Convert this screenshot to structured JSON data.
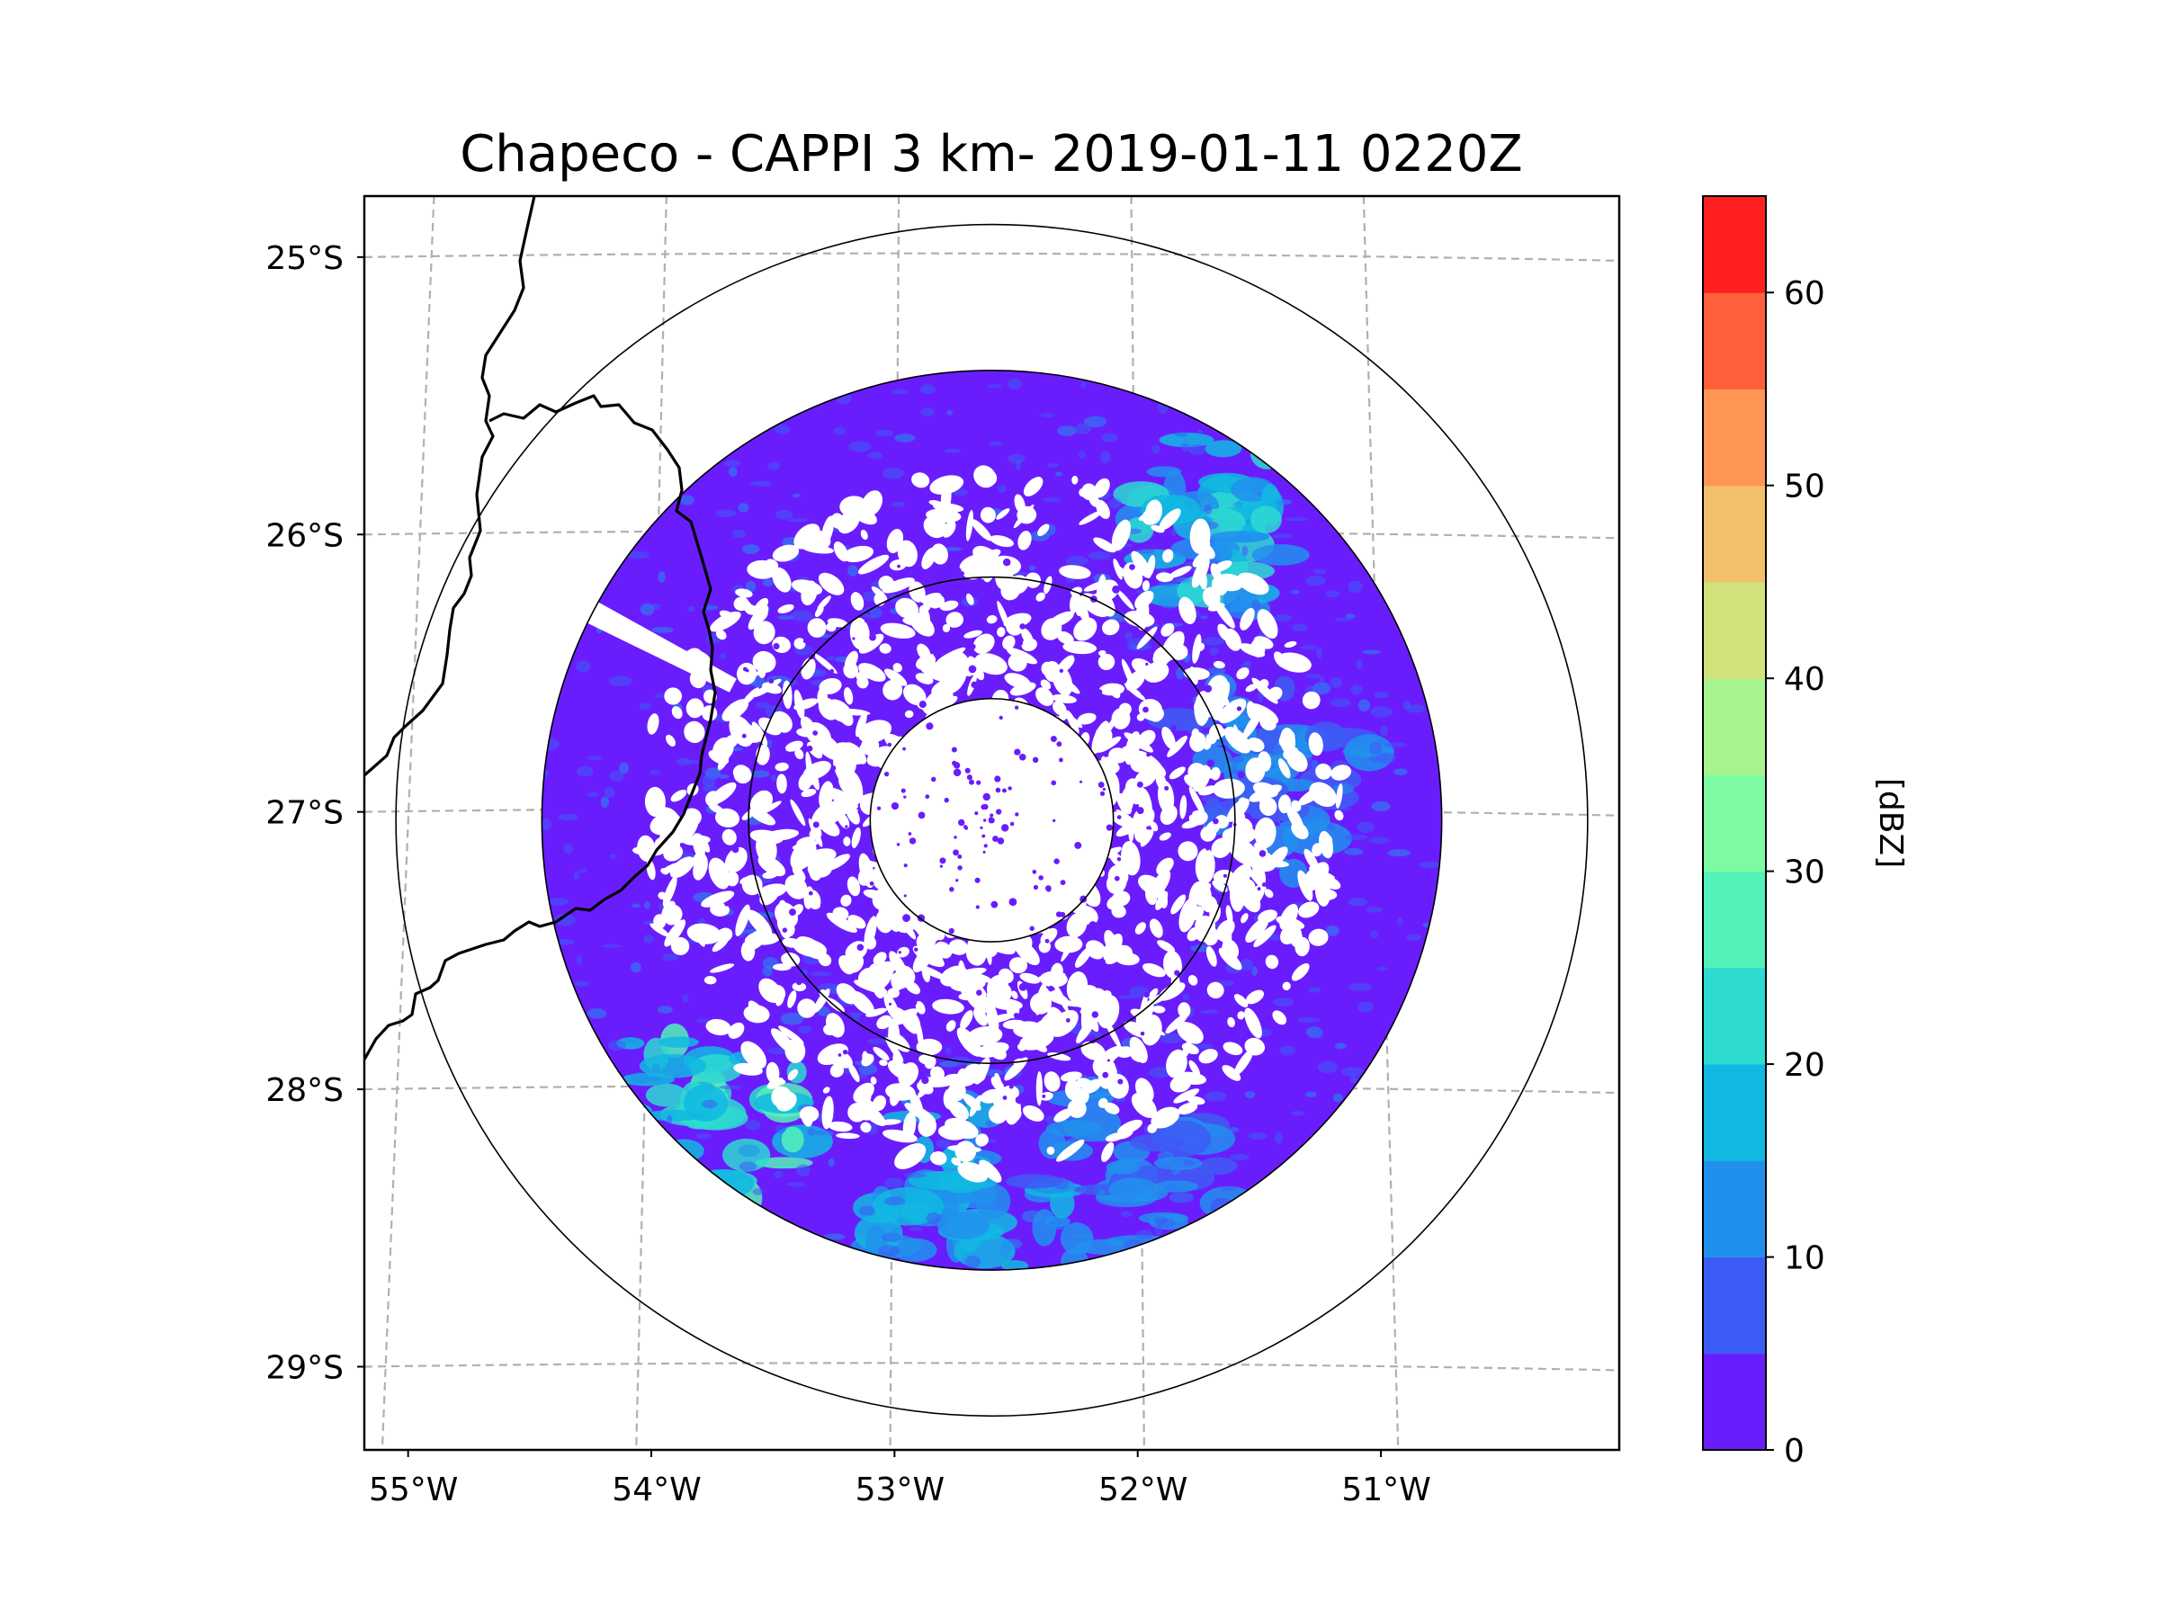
{
  "title": "Chapeco - CAPPI 3 km- 2019-01-11 0220Z",
  "map": {
    "lon_ticks": [
      "55°W",
      "54°W",
      "53°W",
      "52°W",
      "51°W"
    ],
    "lat_ticks": [
      "25°S",
      "26°S",
      "27°S",
      "28°S",
      "29°S"
    ],
    "lon_values": [
      -55,
      -54,
      -53,
      -52,
      -51
    ],
    "lat_values": [
      -25,
      -26,
      -27,
      -28,
      -29
    ],
    "lon_range": [
      -55.18,
      -50.02
    ],
    "lat_range": [
      -29.3,
      -24.78
    ],
    "radar_center": {
      "lon": -52.6,
      "lat": -27.03
    },
    "range_rings_deg": [
      0.5,
      1.0,
      1.85,
      2.45
    ],
    "gridlines": "dashed",
    "coastline_color": "#000000"
  },
  "colorbar": {
    "label": "[dBZ]",
    "tick_labels": [
      "0",
      "10",
      "20",
      "30",
      "40",
      "50",
      "60"
    ],
    "tick_values": [
      0,
      10,
      20,
      30,
      40,
      50,
      60
    ],
    "range": [
      0,
      65
    ],
    "bin_width": 5,
    "colors": [
      "#6a1dfc",
      "#3d5cf5",
      "#2190ed",
      "#10b8e2",
      "#2ddbd1",
      "#52f2b8",
      "#7dfba3",
      "#a7f48f",
      "#d0e27c",
      "#f2c069",
      "#ff9554",
      "#ff5f3a",
      "#ff1f1f"
    ]
  },
  "radar_field": {
    "units": "dBZ",
    "dominant_range": [
      0,
      10
    ],
    "regions": [
      {
        "name": "northeast band",
        "bearing_deg": 40,
        "range_deg": 1.6,
        "approx_dbz": 20
      },
      {
        "name": "southwest echo",
        "bearing_deg": 225,
        "range_deg": 1.7,
        "approx_dbz": 27
      },
      {
        "name": "south echo",
        "bearing_deg": 185,
        "range_deg": 1.55,
        "approx_dbz": 17
      },
      {
        "name": "southeast echo",
        "bearing_deg": 160,
        "range_deg": 1.6,
        "approx_dbz": 14
      },
      {
        "name": "east band",
        "bearing_deg": 80,
        "range_deg": 1.15,
        "approx_dbz": 12
      }
    ]
  }
}
